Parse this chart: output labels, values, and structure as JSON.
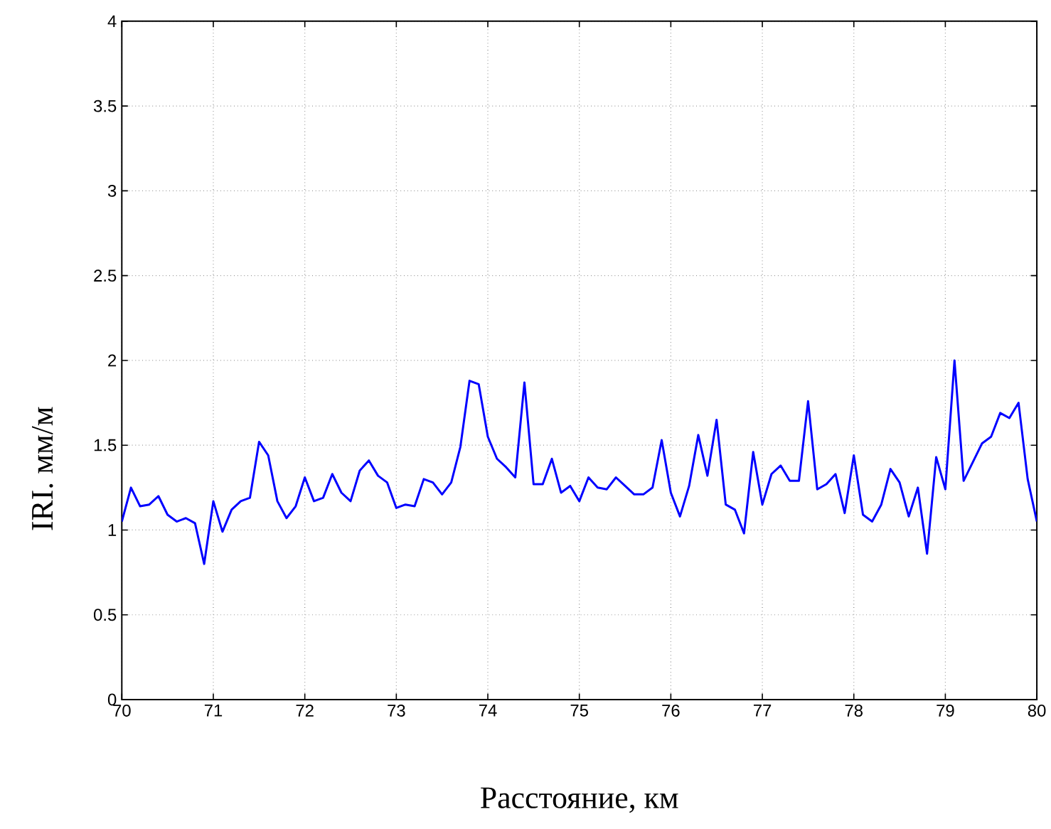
{
  "chart_data": {
    "type": "line",
    "xlabel": "Расстояние, км",
    "ylabel": "IRI. мм/м",
    "x": [
      70.0,
      70.1,
      70.2,
      70.3,
      70.4,
      70.5,
      70.6,
      70.7,
      70.8,
      70.9,
      71.0,
      71.1,
      71.2,
      71.3,
      71.4,
      71.5,
      71.6,
      71.7,
      71.8,
      71.9,
      72.0,
      72.1,
      72.2,
      72.3,
      72.4,
      72.5,
      72.6,
      72.7,
      72.8,
      72.9,
      73.0,
      73.1,
      73.2,
      73.3,
      73.4,
      73.5,
      73.6,
      73.7,
      73.8,
      73.9,
      74.0,
      74.1,
      74.2,
      74.3,
      74.4,
      74.5,
      74.6,
      74.7,
      74.8,
      74.9,
      75.0,
      75.1,
      75.2,
      75.3,
      75.4,
      75.5,
      75.6,
      75.7,
      75.8,
      75.9,
      76.0,
      76.1,
      76.2,
      76.3,
      76.4,
      76.5,
      76.6,
      76.7,
      76.8,
      76.9,
      77.0,
      77.1,
      77.2,
      77.3,
      77.4,
      77.5,
      77.6,
      77.7,
      77.8,
      77.9,
      78.0,
      78.1,
      78.2,
      78.3,
      78.4,
      78.5,
      78.6,
      78.7,
      78.8,
      78.9,
      79.0,
      79.1,
      79.2,
      79.3,
      79.4,
      79.5,
      79.6,
      79.7,
      79.8,
      79.9,
      80.0
    ],
    "series": [
      {
        "color": "#0000ff",
        "values": [
          1.05,
          1.25,
          1.14,
          1.15,
          1.2,
          1.09,
          1.05,
          1.07,
          1.04,
          0.8,
          1.17,
          0.99,
          1.12,
          1.17,
          1.19,
          1.52,
          1.44,
          1.17,
          1.07,
          1.14,
          1.31,
          1.17,
          1.19,
          1.33,
          1.22,
          1.17,
          1.35,
          1.41,
          1.32,
          1.28,
          1.13,
          1.15,
          1.14,
          1.3,
          1.28,
          1.21,
          1.28,
          1.49,
          1.88,
          1.86,
          1.55,
          1.42,
          1.37,
          1.31,
          1.87,
          1.27,
          1.27,
          1.42,
          1.22,
          1.26,
          1.17,
          1.31,
          1.25,
          1.24,
          1.31,
          1.26,
          1.21,
          1.21,
          1.25,
          1.53,
          1.22,
          1.08,
          1.26,
          1.56,
          1.32,
          1.65,
          1.15,
          1.12,
          0.98,
          1.46,
          1.15,
          1.33,
          1.38,
          1.29,
          1.29,
          1.76,
          1.24,
          1.27,
          1.33,
          1.1,
          1.44,
          1.09,
          1.05,
          1.15,
          1.36,
          1.28,
          1.08,
          1.25,
          0.86,
          1.43,
          1.24,
          2.0,
          1.29,
          1.4,
          1.51,
          1.55,
          1.69,
          1.66,
          1.75,
          1.3,
          1.05
        ]
      }
    ],
    "xlim": [
      70,
      80
    ],
    "ylim": [
      0,
      4
    ],
    "xticks": [
      70,
      71,
      72,
      73,
      74,
      75,
      76,
      77,
      78,
      79,
      80
    ],
    "yticks": [
      0,
      0.5,
      1,
      1.5,
      2,
      2.5,
      3,
      3.5,
      4
    ],
    "grid": true,
    "line_style": "solid"
  }
}
